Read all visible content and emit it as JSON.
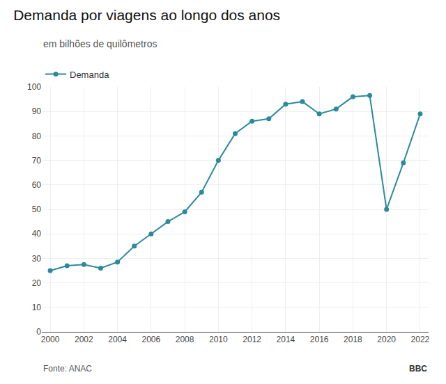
{
  "chart_data": {
    "type": "line",
    "title": "Demanda por viagens ao longo dos anos",
    "subtitle": "em bilhões de quilômetros",
    "annotations": [
      "Fonte: ANAC",
      "BBC"
    ],
    "x": [
      2000,
      2001,
      2002,
      2003,
      2004,
      2005,
      2006,
      2007,
      2008,
      2009,
      2010,
      2011,
      2012,
      2013,
      2014,
      2015,
      2016,
      2017,
      2018,
      2019,
      2020,
      2021,
      2022
    ],
    "series": [
      {
        "name": "Demanda",
        "color": "#2a8a9b",
        "marker": "circle",
        "values": [
          25,
          27,
          27.5,
          26,
          28.5,
          35,
          40,
          45,
          49,
          57,
          70,
          81,
          86,
          87,
          93,
          94,
          89,
          91,
          96,
          96.5,
          50,
          69,
          89
        ]
      }
    ],
    "xlim": [
      1999.5,
      2022.5
    ],
    "xticks": [
      2000,
      2002,
      2004,
      2006,
      2008,
      2010,
      2012,
      2014,
      2016,
      2018,
      2020,
      2022
    ],
    "ylim": [
      0,
      100
    ],
    "yticks": [
      0,
      10,
      20,
      30,
      40,
      50,
      60,
      70,
      80,
      90,
      100
    ],
    "grid": true,
    "legend": "upper left"
  }
}
